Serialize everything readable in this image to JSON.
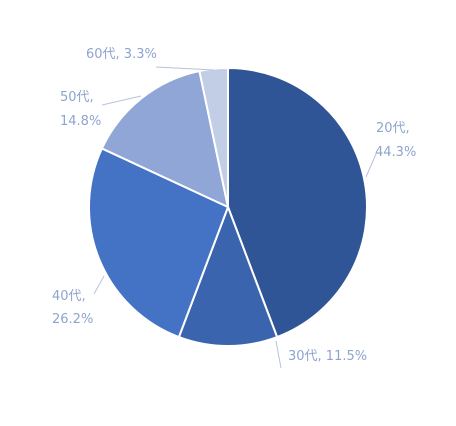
{
  "chart_data": {
    "type": "pie",
    "title": "",
    "series": [
      {
        "label_name": "20代",
        "label_value": "44.3%",
        "value": 44.3,
        "color": "#2f5597"
      },
      {
        "label_name": "30代",
        "label_value": "11.5%",
        "value": 11.5,
        "color": "#3a64ad"
      },
      {
        "label_name": "40代",
        "label_value": "26.2%",
        "value": 26.2,
        "color": "#4472c4"
      },
      {
        "label_name": "50代",
        "label_value": "14.8%",
        "value": 14.8,
        "color": "#8fa6d6"
      },
      {
        "label_name": "60代",
        "label_value": "3.3%",
        "value": 3.3,
        "color": "#c2cde6"
      }
    ],
    "legend": "none",
    "data_labels": "outside-with-leaders"
  }
}
